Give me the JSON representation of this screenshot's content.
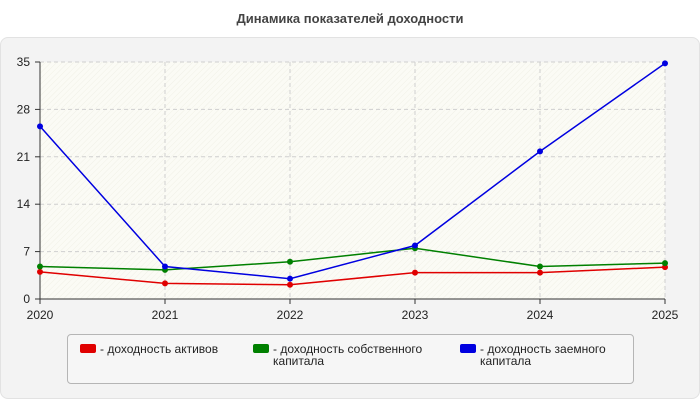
{
  "chart_data": {
    "type": "line",
    "title": "Динамика показателей доходности",
    "x": [
      "2020",
      "2021",
      "2022",
      "2023",
      "2024",
      "2025"
    ],
    "yticks": [
      "0",
      "7",
      "14",
      "21",
      "28",
      "35"
    ],
    "ylim": [
      0,
      35
    ],
    "grid": true,
    "legend_position": "bottom",
    "series": [
      {
        "name": "- доходность активов",
        "color": "#e00000",
        "values": [
          4.0,
          2.3,
          2.1,
          3.9,
          3.9,
          4.7
        ]
      },
      {
        "name": "- доходность собственного капитала",
        "color": "#008000",
        "values": [
          4.8,
          4.3,
          5.5,
          7.5,
          4.8,
          5.3
        ]
      },
      {
        "name": "- доходность заемного капитала",
        "color": "#0000e0",
        "values": [
          25.5,
          4.8,
          3.0,
          7.9,
          21.8,
          34.8
        ]
      }
    ]
  }
}
